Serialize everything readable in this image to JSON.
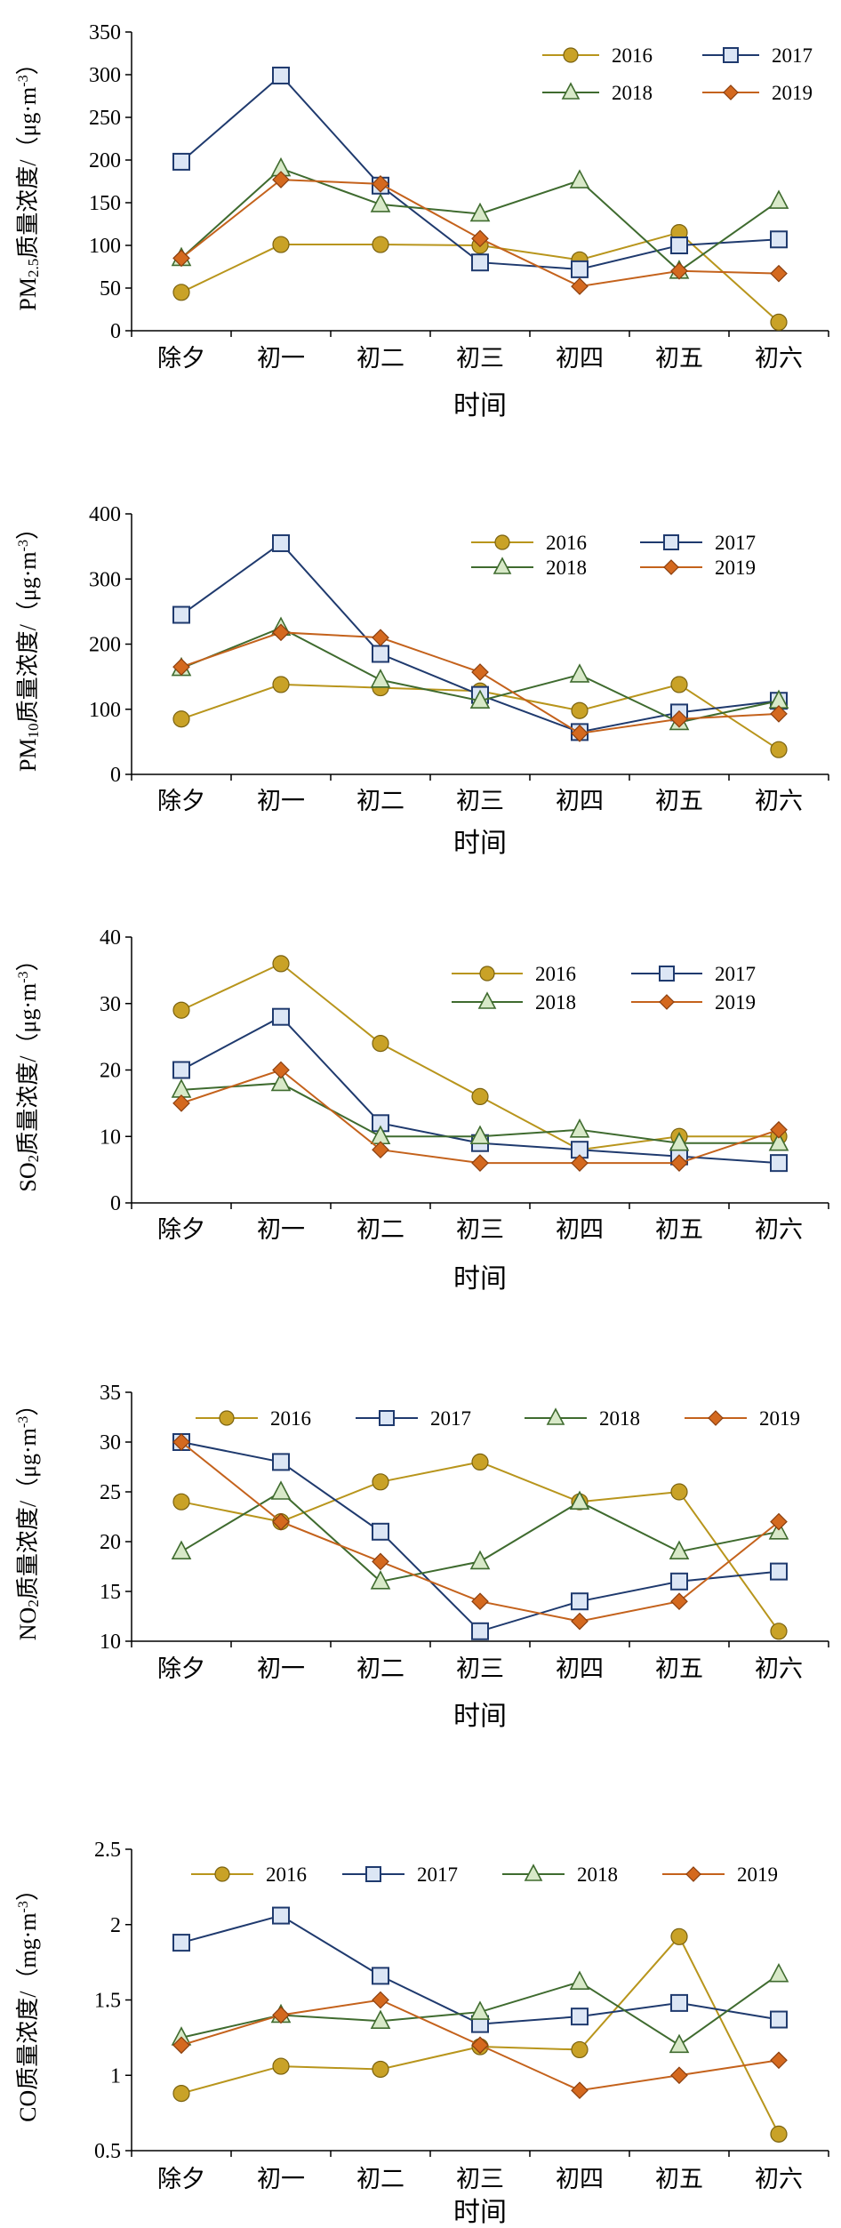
{
  "chart_data": [
    {
      "type": "line",
      "ylabel": "PM2.5质量浓度/（μg·m⁻³）",
      "ylabel_main": "PM",
      "ylabel_sub": "2.5",
      "ylabel_rest": "质量浓度/（μg·m",
      "ylabel_sup": "-3",
      "ylabel_end": "）",
      "xlabel": "时间",
      "categories": [
        "除夕",
        "初一",
        "初二",
        "初三",
        "初四",
        "初五",
        "初六"
      ],
      "ylim": [
        0,
        350
      ],
      "yticks": [
        0,
        50,
        100,
        150,
        200,
        250,
        300,
        350
      ],
      "legend_position": "top-right",
      "series": [
        {
          "name": "2016",
          "values": [
            45,
            101,
            101,
            100,
            83,
            115,
            10
          ]
        },
        {
          "name": "2017",
          "values": [
            198,
            299,
            170,
            80,
            72,
            100,
            107
          ]
        },
        {
          "name": "2018",
          "values": [
            85,
            190,
            148,
            137,
            176,
            70,
            152
          ]
        },
        {
          "name": "2019",
          "values": [
            85,
            177,
            172,
            108,
            52,
            70,
            67
          ]
        }
      ]
    },
    {
      "type": "line",
      "ylabel": "PM10质量浓度/（μg·m⁻³）",
      "ylabel_main": "PM",
      "ylabel_sub": "10",
      "ylabel_rest": "质量浓度/（μg·m",
      "ylabel_sup": "-3",
      "ylabel_end": "）",
      "xlabel": "时间",
      "categories": [
        "除夕",
        "初一",
        "初二",
        "初三",
        "初四",
        "初五",
        "初六"
      ],
      "ylim": [
        0,
        400
      ],
      "yticks": [
        0,
        100,
        200,
        300,
        400
      ],
      "legend_position": "top-right",
      "series": [
        {
          "name": "2016",
          "values": [
            85,
            138,
            133,
            128,
            98,
            138,
            38
          ]
        },
        {
          "name": "2017",
          "values": [
            245,
            355,
            185,
            122,
            65,
            95,
            113
          ]
        },
        {
          "name": "2018",
          "values": [
            163,
            225,
            145,
            113,
            153,
            80,
            113
          ]
        },
        {
          "name": "2019",
          "values": [
            165,
            218,
            210,
            157,
            63,
            85,
            93
          ]
        }
      ]
    },
    {
      "type": "line",
      "ylabel": "SO2质量浓度/（μg·m⁻³）",
      "ylabel_main": "SO",
      "ylabel_sub": "2",
      "ylabel_rest": "质量浓度/（μg·m",
      "ylabel_sup": "-3",
      "ylabel_end": "）",
      "xlabel": "时间",
      "categories": [
        "除夕",
        "初一",
        "初二",
        "初三",
        "初四",
        "初五",
        "初六"
      ],
      "ylim": [
        0,
        40
      ],
      "yticks": [
        0,
        10,
        20,
        30,
        40
      ],
      "legend_position": "top-right",
      "series": [
        {
          "name": "2016",
          "values": [
            29,
            36,
            24,
            16,
            8,
            10,
            10
          ]
        },
        {
          "name": "2017",
          "values": [
            20,
            28,
            12,
            9,
            8,
            7,
            6
          ]
        },
        {
          "name": "2018",
          "values": [
            17,
            18,
            10,
            10,
            11,
            9,
            9
          ]
        },
        {
          "name": "2019",
          "values": [
            15,
            20,
            8,
            6,
            6,
            6,
            11
          ]
        }
      ]
    },
    {
      "type": "line",
      "ylabel": "NO2质量浓度/（μg·m⁻³）",
      "ylabel_main": "NO",
      "ylabel_sub": "2",
      "ylabel_rest": "质量浓度/（μg·m",
      "ylabel_sup": "-3",
      "ylabel_end": "）",
      "xlabel": "时间",
      "categories": [
        "除夕",
        "初一",
        "初二",
        "初三",
        "初四",
        "初五",
        "初六"
      ],
      "ylim": [
        10,
        35
      ],
      "yticks": [
        10,
        15,
        20,
        25,
        30,
        35
      ],
      "legend_position": "top",
      "series": [
        {
          "name": "2016",
          "values": [
            24,
            22,
            26,
            28,
            24,
            25,
            11
          ]
        },
        {
          "name": "2017",
          "values": [
            30,
            28,
            21,
            11,
            14,
            16,
            17
          ]
        },
        {
          "name": "2018",
          "values": [
            19,
            25,
            16,
            18,
            24,
            19,
            21
          ]
        },
        {
          "name": "2019",
          "values": [
            30,
            22,
            18,
            14,
            12,
            14,
            22
          ]
        }
      ]
    },
    {
      "type": "line",
      "ylabel": "CO质量浓度/（mg·m⁻³）",
      "ylabel_main": "CO",
      "ylabel_sub": "",
      "ylabel_rest": "质量浓度/（mg·m",
      "ylabel_sup": "-3",
      "ylabel_end": "）",
      "xlabel": "时间",
      "categories": [
        "除夕",
        "初一",
        "初二",
        "初三",
        "初四",
        "初五",
        "初六"
      ],
      "ylim": [
        0.5,
        2.5
      ],
      "yticks": [
        "0.5",
        "1",
        "1.5",
        "2",
        "2.5"
      ],
      "legend_position": "top",
      "series": [
        {
          "name": "2016",
          "values": [
            0.88,
            1.06,
            1.04,
            1.19,
            1.17,
            1.92,
            0.61
          ]
        },
        {
          "name": "2017",
          "values": [
            1.88,
            2.06,
            1.66,
            1.34,
            1.39,
            1.48,
            1.37
          ]
        },
        {
          "name": "2018",
          "values": [
            1.25,
            1.4,
            1.36,
            1.42,
            1.62,
            1.2,
            1.67
          ]
        },
        {
          "name": "2019",
          "values": [
            1.2,
            1.4,
            1.5,
            1.2,
            0.9,
            1.0,
            1.1
          ]
        }
      ]
    }
  ],
  "series_styles": {
    "2016": {
      "color": "#b8951c",
      "fill": "#c9a227",
      "marker": "circle"
    },
    "2017": {
      "color": "#1f3a6e",
      "fill": "#dce6f5",
      "marker": "square"
    },
    "2018": {
      "color": "#3f6b2f",
      "fill": "#d8e9c8",
      "marker": "triangle"
    },
    "2019": {
      "color": "#c4621c",
      "fill": "#d4691f",
      "marker": "diamond"
    }
  }
}
